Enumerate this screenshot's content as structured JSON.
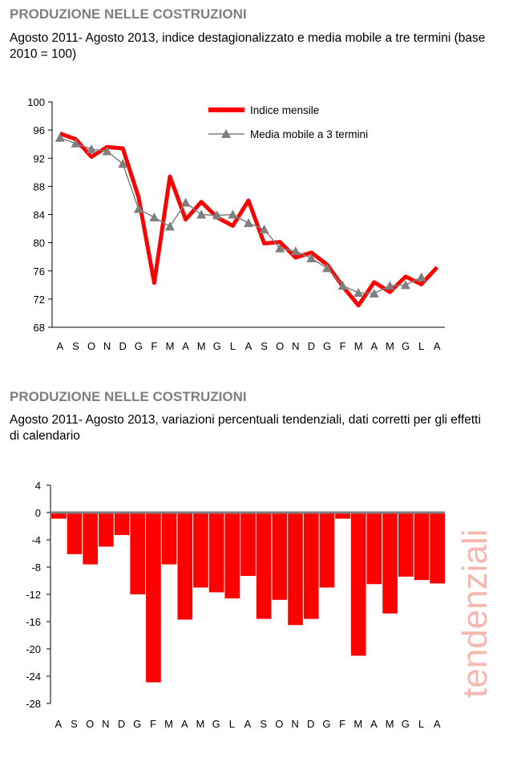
{
  "panel1": {
    "title": "PRODUZIONE NELLE COSTRUZIONI",
    "subtitle": "Agosto 2011- Agosto 2013, indice destagionalizzato e media mobile a tre termini (base 2010 = 100)"
  },
  "panel2": {
    "title": "PRODUZIONE NELLE COSTRUZIONI",
    "subtitle": "Agosto 2011- Agosto 2013, variazioni percentuali tendenziali, dati corretti per gli effetti di calendario"
  },
  "side_label": "tendenziali",
  "colors": {
    "index_line": "#ff0000",
    "moving_avg": "#7f7f7f",
    "bars": "#ff0000",
    "side_label": "#f4b8b0",
    "title_gray": "#7f7f7f"
  },
  "chart_data": [
    {
      "type": "line",
      "categories": [
        "A",
        "S",
        "O",
        "N",
        "D",
        "G",
        "F",
        "M",
        "A",
        "M",
        "G",
        "L",
        "A",
        "S",
        "O",
        "N",
        "D",
        "G",
        "F",
        "M",
        "A",
        "M",
        "G",
        "L",
        "A"
      ],
      "series": [
        {
          "name": "Indice mensile",
          "values": [
            95.5,
            94.7,
            92.2,
            93.6,
            93.4,
            86.5,
            74.3,
            89.4,
            83.3,
            85.8,
            83.6,
            82.4,
            86.0,
            79.9,
            80.1,
            77.9,
            78.6,
            76.9,
            73.8,
            71.1,
            74.4,
            73.0,
            75.2,
            74.1,
            76.5
          ]
        },
        {
          "name": "Media mobile a 3 termini",
          "values": [
            94.9,
            94.1,
            93.3,
            93.0,
            91.2,
            84.8,
            83.6,
            82.3,
            85.7,
            84.0,
            83.9,
            84.0,
            82.8,
            81.9,
            79.2,
            78.8,
            77.8,
            76.4,
            73.9,
            72.9,
            72.8,
            73.9,
            74.0,
            75.1,
            null
          ]
        }
      ],
      "ylim": [
        68,
        100
      ],
      "yticks": [
        68,
        72,
        76,
        80,
        84,
        88,
        92,
        96,
        100
      ],
      "grid": false,
      "legend": "top-right"
    },
    {
      "type": "bar",
      "categories": [
        "A",
        "S",
        "O",
        "N",
        "D",
        "G",
        "F",
        "M",
        "A",
        "M",
        "G",
        "L",
        "A",
        "S",
        "O",
        "N",
        "D",
        "G",
        "F",
        "M",
        "A",
        "M",
        "G",
        "L",
        "A"
      ],
      "values": [
        -0.9,
        -6.1,
        -7.6,
        -5.0,
        -3.3,
        -12.0,
        -24.9,
        -7.6,
        -15.7,
        -11.0,
        -11.7,
        -12.6,
        -9.3,
        -15.6,
        -12.8,
        -16.5,
        -15.6,
        -11.0,
        -0.9,
        -21.0,
        -10.5,
        -14.8,
        -9.4,
        -9.9,
        -10.4
      ],
      "ylim": [
        -28,
        4
      ],
      "yticks": [
        -28,
        -24,
        -20,
        -16,
        -12,
        -8,
        -4,
        0,
        4
      ],
      "grid": false
    }
  ]
}
